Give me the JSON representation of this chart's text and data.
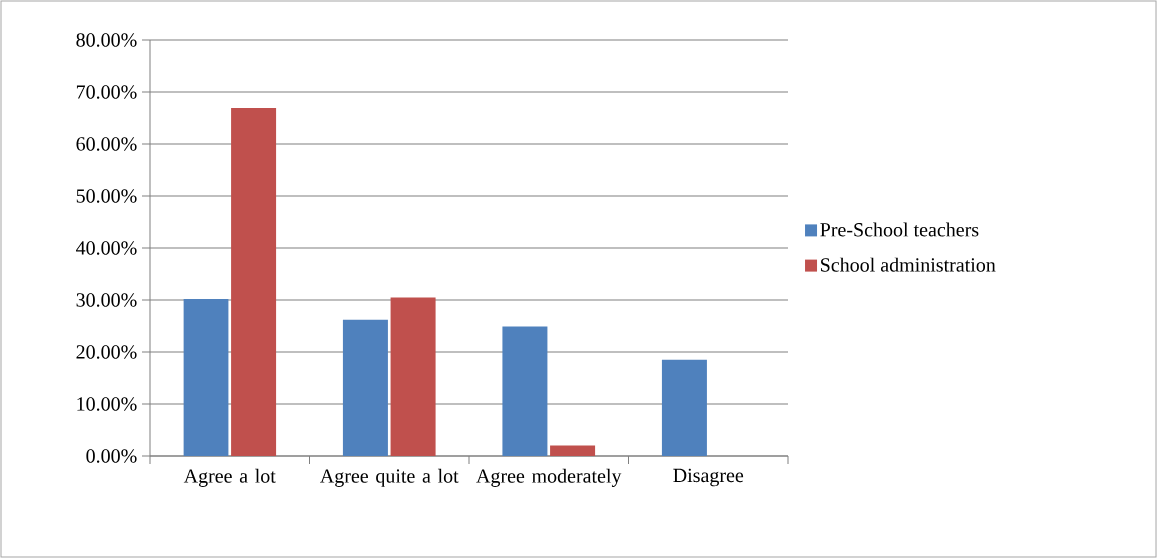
{
  "chart_data": {
    "type": "bar",
    "categories": [
      "Agree a lot",
      "Agree quite a lot",
      "Agree moderately",
      "Disagree"
    ],
    "series": [
      {
        "name": "Pre-School teachers",
        "color": "#4f81bd",
        "values": [
          30.2,
          26.2,
          24.9,
          18.5
        ]
      },
      {
        "name": "School administration",
        "color": "#c0504d",
        "values": [
          66.9,
          30.5,
          2.0,
          0
        ]
      }
    ],
    "ylim": [
      0,
      80
    ],
    "yticks": [
      {
        "value": 0,
        "label": "0.00%"
      },
      {
        "value": 10,
        "label": "10.00%"
      },
      {
        "value": 20,
        "label": "20.00%"
      },
      {
        "value": 30,
        "label": "30.00%"
      },
      {
        "value": 40,
        "label": "40.00%"
      },
      {
        "value": 50,
        "label": "50.00%"
      },
      {
        "value": 60,
        "label": "60.00%"
      },
      {
        "value": 70,
        "label": "70.00%"
      },
      {
        "value": 80,
        "label": "80.00%"
      }
    ],
    "grid": "y",
    "legend": "right"
  }
}
